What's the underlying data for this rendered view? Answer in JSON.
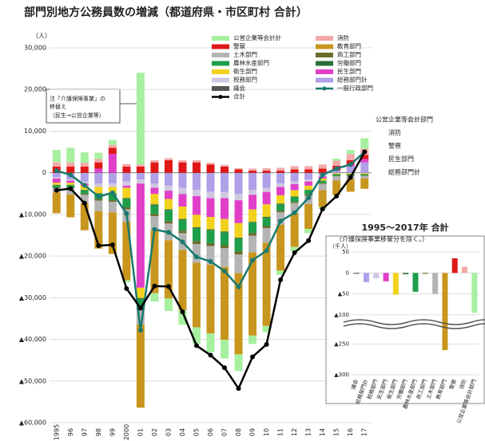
{
  "chart_data": [
    {
      "type": "stacked_bar",
      "title": "部門別地方公務員数の増減（都道府県・市区町村 合計）",
      "y_label": "（人）",
      "annotation": [
        "注「介護保険事業」の",
        "移替え",
        "（民生→公営企業等）"
      ],
      "end_labels": [
        "公営企業等会計部門",
        "消防",
        "警察",
        "民生部門",
        "総務部門計"
      ],
      "categories": [
        "1995",
        "96",
        "97",
        "98",
        "99",
        "2000",
        "01",
        "02",
        "03",
        "04",
        "05",
        "06",
        "07",
        "08",
        "09",
        "10",
        "11",
        "12",
        "13",
        "14",
        "15",
        "16",
        "17"
      ],
      "ylim": [
        -60000,
        30000
      ],
      "yticks": [
        {
          "value": 30000,
          "label": "30,000"
        },
        {
          "value": 20000,
          "label": "20,000"
        },
        {
          "value": 10000,
          "label": "10,000"
        },
        0,
        {
          "value": -10000,
          "label": "▲10,000"
        },
        {
          "value": -20000,
          "label": "▲20,000"
        },
        {
          "value": -30000,
          "label": "▲30,000"
        },
        {
          "value": -40000,
          "label": "▲40,000"
        },
        {
          "value": -50000,
          "label": "▲50,000"
        },
        {
          "value": -60000,
          "label": "▲60,000"
        }
      ],
      "grid": true,
      "series": [
        {
          "name": "公営企業等会計計",
          "color": "#a6f0a0",
          "values": [
            3000,
            3500,
            2500,
            1500,
            1200,
            -500,
            22000,
            -2000,
            -3000,
            -3500,
            -4000,
            -4500,
            -4500,
            -4000,
            -2000,
            -1500,
            -1000,
            -1000,
            -1000,
            -500,
            500,
            1000,
            2500
          ]
        },
        {
          "name": "消防",
          "color": "#f4a8a8",
          "values": [
            1000,
            1000,
            900,
            800,
            700,
            600,
            500,
            500,
            500,
            500,
            500,
            400,
            400,
            300,
            500,
            600,
            700,
            800,
            800,
            1000,
            1200,
            1500,
            1500
          ]
        },
        {
          "name": "警察",
          "color": "#e01818",
          "values": [
            1500,
            1500,
            1500,
            1500,
            1500,
            1500,
            1500,
            2500,
            3000,
            2500,
            2500,
            2000,
            1500,
            800,
            500,
            500,
            500,
            800,
            800,
            1000,
            1000,
            1000,
            1000
          ]
        },
        {
          "name": "教育部門",
          "color": "#c8961e",
          "values": [
            -5000,
            -5500,
            -6500,
            -9000,
            -10000,
            -14000,
            -20000,
            -15000,
            -14000,
            -14500,
            -15500,
            -16500,
            -17500,
            -19500,
            -20000,
            -20000,
            -11000,
            -8000,
            -6000,
            -4000,
            -3500,
            -3000,
            -2500
          ]
        },
        {
          "name": "土木部門",
          "color": "#b4b4b4",
          "values": [
            -1000,
            -1500,
            -2000,
            -2500,
            -2500,
            -3000,
            -3500,
            -3500,
            -4000,
            -4000,
            -4500,
            -4500,
            -4500,
            -4500,
            -4000,
            -3500,
            -3000,
            -2500,
            -2000,
            -1500,
            -1000,
            -800,
            -600
          ]
        },
        {
          "name": "商工部門",
          "color": "#6b6b2a",
          "values": [
            -200,
            -200,
            -300,
            -400,
            -400,
            -500,
            -500,
            -500,
            -600,
            -600,
            -700,
            -700,
            -700,
            -700,
            -600,
            -500,
            -400,
            -300,
            -300,
            -200,
            -100,
            -100,
            -100
          ]
        },
        {
          "name": "農林水産部門",
          "color": "#1e9e4a",
          "values": [
            -500,
            -500,
            -800,
            -1200,
            -1500,
            -2000,
            -2000,
            -2000,
            -2500,
            -2500,
            -3000,
            -3000,
            -3000,
            -3000,
            -2500,
            -2000,
            -1500,
            -1200,
            -1000,
            -500,
            -300,
            -200,
            -200
          ]
        },
        {
          "name": "労働部門",
          "color": "#2a6e3a",
          "values": [
            -100,
            -100,
            -100,
            -200,
            -200,
            -200,
            -300,
            -300,
            -300,
            -300,
            -300,
            -300,
            -300,
            -300,
            -200,
            -200,
            -200,
            -100,
            -100,
            -100,
            -100,
            -100,
            -100
          ]
        },
        {
          "name": "衛生部門",
          "color": "#f2d21e",
          "values": [
            -500,
            -500,
            -1000,
            -1500,
            -1500,
            -2500,
            -2500,
            -2500,
            -2500,
            -3000,
            -3000,
            -3000,
            -3000,
            -3500,
            -3000,
            -3000,
            -2000,
            -1500,
            -1000,
            -500,
            -200,
            -200,
            -200
          ]
        },
        {
          "name": "民生部門",
          "color": "#e040c8",
          "values": [
            -1000,
            -500,
            -500,
            1000,
            4500,
            -500,
            -25000,
            -1500,
            -2000,
            -3000,
            -4500,
            -4500,
            -5000,
            -5500,
            -3500,
            -3000,
            -2000,
            -1500,
            -1000,
            -500,
            200,
            500,
            800
          ]
        },
        {
          "name": "税務部門",
          "color": "#d0c8e0",
          "values": [
            -300,
            -300,
            -500,
            -800,
            -800,
            -1000,
            -1000,
            -1000,
            -1200,
            -1500,
            -1500,
            -1500,
            -1500,
            -1500,
            -1200,
            -1000,
            -800,
            -600,
            -500,
            -300,
            -100,
            -100,
            -100
          ]
        },
        {
          "name": "総務部門計",
          "color": "#b0a0e8",
          "values": [
            -1000,
            -1500,
            -2000,
            -2500,
            -2500,
            -2000,
            -1500,
            -2500,
            -3000,
            -3500,
            -4000,
            -4500,
            -4500,
            -5000,
            -4000,
            -3500,
            -2500,
            -2000,
            -1500,
            -500,
            500,
            1500,
            2500
          ]
        },
        {
          "name": "議会",
          "color": "#555555",
          "values": [
            -100,
            -100,
            -100,
            -100,
            -100,
            -100,
            -100,
            -100,
            -100,
            -100,
            -100,
            -100,
            -100,
            -100,
            -100,
            -100,
            -100,
            -100,
            -100,
            -100,
            -50,
            -50,
            -50
          ]
        },
        {
          "name": "一般行政部門",
          "color": "#1a7a6e",
          "kind": "line",
          "values": [
            500,
            -500,
            -3000,
            -5700,
            -4800,
            -9800,
            -37800,
            -13600,
            -14300,
            -16600,
            -20200,
            -21300,
            -23600,
            -27400,
            -21000,
            -18700,
            -11600,
            -9600,
            -6000,
            -500,
            1000,
            2000,
            5000
          ]
        },
        {
          "name": "合計",
          "color": "#000000",
          "kind": "line",
          "values": [
            -4200,
            -3800,
            -7300,
            -17500,
            -17300,
            -27800,
            -32500,
            -27200,
            -27300,
            -33400,
            -41500,
            -43800,
            -46800,
            -51800,
            -44200,
            -41200,
            -25700,
            -19200,
            -16300,
            -8700,
            -5600,
            -1100,
            5000
          ]
        }
      ]
    },
    {
      "type": "bar",
      "title": "1995～2017年 合計",
      "subtitle": "（介護保険事業移管分を除く。）",
      "y_label": "（千人）",
      "categories": [
        "議会",
        "総務部門計",
        "税務部門",
        "民生部門",
        "衛生部門",
        "労働部門",
        "農林水産部門",
        "商工部門",
        "土木部門",
        "教育部門",
        "警察",
        "消防",
        "公営企業等会計部門"
      ],
      "values": [
        -2,
        -22,
        -13,
        -20,
        -52,
        -3,
        -45,
        -2,
        -50,
        -260,
        35,
        15,
        -95
      ],
      "colors": [
        "#555555",
        "#b0a0e8",
        "#d0c8e0",
        "#e040c8",
        "#f2d21e",
        "#2a6e3a",
        "#1e9e4a",
        "#6b6b2a",
        "#b4b4b4",
        "#c8961e",
        "#e01818",
        "#f4a8a8",
        "#a6f0a0"
      ],
      "ylim": [
        -300,
        50
      ],
      "axis_break": [
        -110,
        -225
      ],
      "yticks": [
        50,
        0,
        {
          "value": -50,
          "label": "▲50"
        },
        {
          "value": -100,
          "label": "▲100"
        },
        {
          "value": -250,
          "label": "▲250"
        },
        {
          "value": -300,
          "label": "▲300"
        }
      ]
    }
  ]
}
